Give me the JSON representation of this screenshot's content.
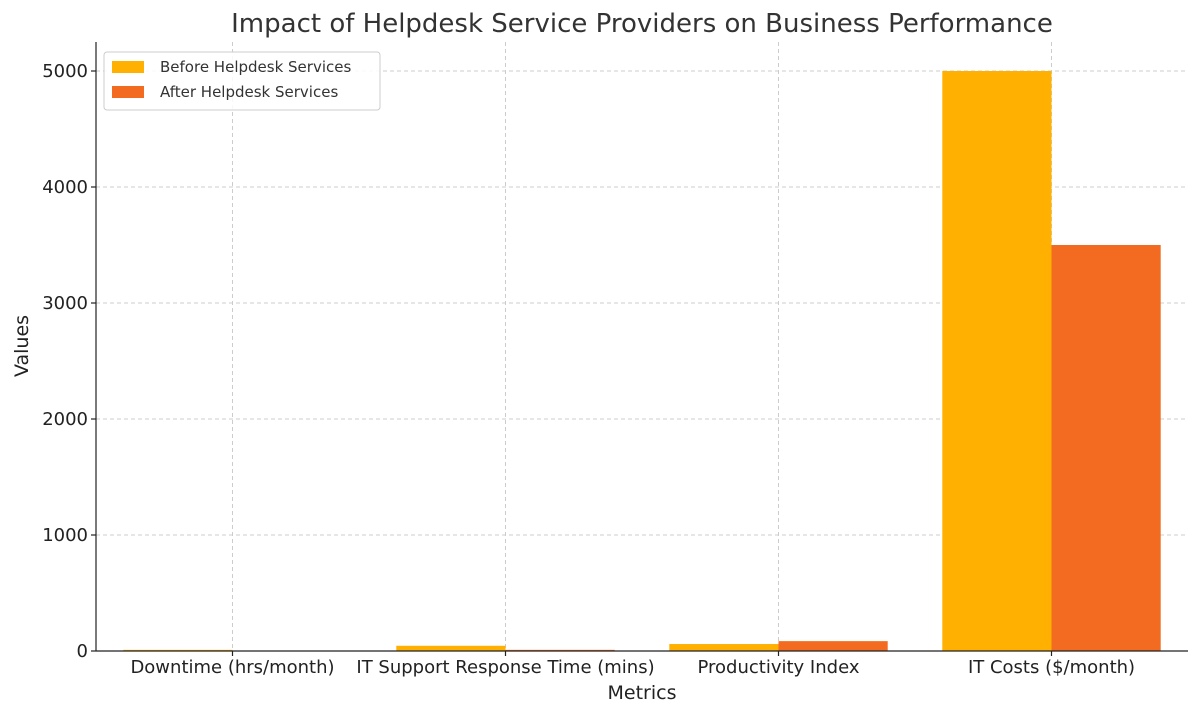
{
  "chart_data": {
    "type": "bar",
    "title": "Impact of Helpdesk Service Providers on Business Performance",
    "xlabel": "Metrics",
    "ylabel": "Values",
    "categories": [
      "Downtime (hrs/month)",
      "IT Support Response Time (mins)",
      "Productivity Index",
      "IT Costs ($/month)"
    ],
    "series": [
      {
        "name": "Before Helpdesk Services",
        "color": "#FFB000",
        "values": [
          10,
          45,
          60,
          5000
        ]
      },
      {
        "name": "After Helpdesk Services",
        "color": "#F26B21",
        "values": [
          2,
          10,
          85,
          3500
        ]
      }
    ],
    "ylim": [
      0,
      5250
    ],
    "yticks": [
      0,
      1000,
      2000,
      3000,
      4000,
      5000
    ],
    "grid": true,
    "legend_position": "top-left"
  }
}
